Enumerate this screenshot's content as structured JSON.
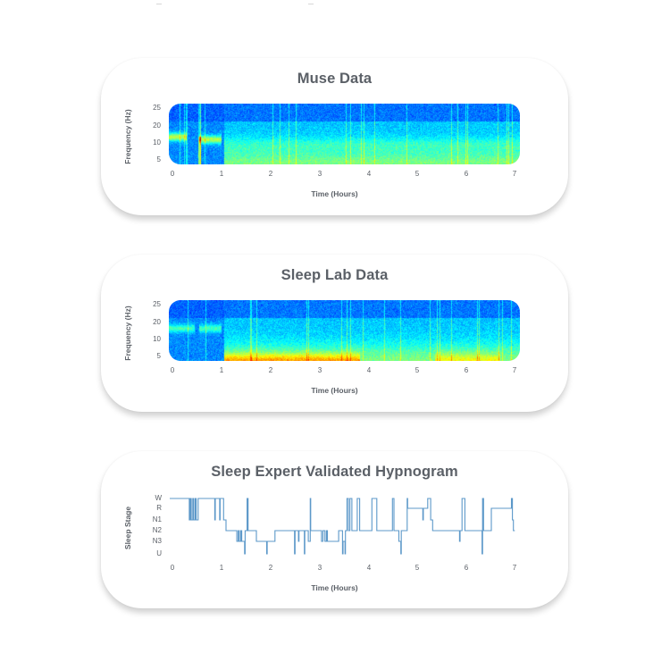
{
  "page": {
    "cards": [
      {
        "id": "muse",
        "title": "Muse Data"
      },
      {
        "id": "lab",
        "title": "Sleep Lab Data"
      },
      {
        "id": "hypnogram",
        "title": "Sleep Expert Validated Hypnogram"
      }
    ]
  },
  "colors": {
    "title_text": "#5b6067",
    "hypnogram_line": "#3f86c0",
    "spectrogram_low": "#0a2fd0",
    "spectrogram_mid": "#2fc8f0",
    "spectrogram_high": "#e8f040"
  },
  "chart_data": [
    {
      "type": "heatmap",
      "title": "Muse Data",
      "xlabel": "Time (Hours)",
      "ylabel": "Frequency (Hz)",
      "x_ticks": [
        "0",
        "1",
        "2",
        "3",
        "4",
        "5",
        "6",
        "7"
      ],
      "y_ticks": [
        "25",
        "20",
        "10",
        "5"
      ],
      "xlim": [
        0,
        7
      ],
      "ylim": [
        3,
        27
      ],
      "colormap": "jet",
      "description": "EEG spectrogram; alpha band (~12-15 Hz) prominent during 0-1 h wake; broadband low-frequency power 1.2-7 h",
      "features": [
        {
          "time_range": [
            0,
            0.35
          ],
          "freq_hz": 14,
          "intensity": "high"
        },
        {
          "time_range": [
            0.6,
            1.05
          ],
          "freq_hz": 13,
          "intensity": "high"
        },
        {
          "time_range": [
            1.1,
            7
          ],
          "freq_hz": 5,
          "intensity": "medium"
        },
        {
          "time_range": [
            1.1,
            7
          ],
          "freq_hz": 11,
          "intensity": "medium"
        }
      ]
    },
    {
      "type": "heatmap",
      "title": "Sleep Lab Data",
      "xlabel": "Time (Hours)",
      "ylabel": "Frequency (Hz)",
      "x_ticks": [
        "0",
        "1",
        "2",
        "3",
        "4",
        "5",
        "6",
        "7"
      ],
      "y_ticks": [
        "25",
        "20",
        "10",
        "5"
      ],
      "xlim": [
        0,
        7
      ],
      "ylim": [
        3,
        27
      ],
      "colormap": "jet",
      "description": "Reference PSG spectrogram; alpha band ~16 Hz during 0-1 h; strong low-frequency (delta) power around 1.2-3.7 h",
      "features": [
        {
          "time_range": [
            0,
            0.5
          ],
          "freq_hz": 16,
          "intensity": "medium"
        },
        {
          "time_range": [
            0.6,
            1.05
          ],
          "freq_hz": 16,
          "intensity": "medium"
        },
        {
          "time_range": [
            1.1,
            3.8
          ],
          "freq_hz": 4,
          "intensity": "high"
        },
        {
          "time_range": [
            5.3,
            6.6
          ],
          "freq_hz": 4,
          "intensity": "medium"
        }
      ]
    },
    {
      "type": "line",
      "title": "Sleep Expert Validated Hypnogram",
      "xlabel": "Time (Hours)",
      "ylabel": "Sleep Stage",
      "x_ticks": [
        "0",
        "1",
        "2",
        "3",
        "4",
        "5",
        "6",
        "7"
      ],
      "y_ticks": [
        "W",
        "R",
        "N1",
        "N2",
        "N3",
        "U"
      ],
      "xlim": [
        0,
        7.05
      ],
      "step": true,
      "series": [
        {
          "name": "Sleep stage",
          "points": [
            [
              0.0,
              "W"
            ],
            [
              0.4,
              "N1"
            ],
            [
              0.42,
              "W"
            ],
            [
              0.44,
              "N1"
            ],
            [
              0.47,
              "W"
            ],
            [
              0.49,
              "N1"
            ],
            [
              0.52,
              "W"
            ],
            [
              0.54,
              "N1"
            ],
            [
              0.58,
              "W"
            ],
            [
              0.92,
              "N1"
            ],
            [
              0.93,
              "W"
            ],
            [
              1.02,
              "N1"
            ],
            [
              1.03,
              "W"
            ],
            [
              1.1,
              "N1"
            ],
            [
              1.15,
              "N2"
            ],
            [
              1.37,
              "N3"
            ],
            [
              1.4,
              "N2"
            ],
            [
              1.42,
              "N3"
            ],
            [
              1.45,
              "N2"
            ],
            [
              1.47,
              "N3"
            ],
            [
              1.5,
              "N3"
            ],
            [
              1.53,
              "U"
            ],
            [
              1.54,
              "N2"
            ],
            [
              1.58,
              "W"
            ],
            [
              1.6,
              "N2"
            ],
            [
              1.77,
              "N3"
            ],
            [
              1.98,
              "U"
            ],
            [
              1.99,
              "N3"
            ],
            [
              2.15,
              "N2"
            ],
            [
              2.55,
              "U"
            ],
            [
              2.56,
              "N2"
            ],
            [
              2.63,
              "N3"
            ],
            [
              2.64,
              "N2"
            ],
            [
              2.75,
              "U"
            ],
            [
              2.76,
              "N2"
            ],
            [
              2.83,
              "N3"
            ],
            [
              2.87,
              "W"
            ],
            [
              2.88,
              "N2"
            ],
            [
              3.1,
              "N3"
            ],
            [
              3.13,
              "N2"
            ],
            [
              3.17,
              "N3"
            ],
            [
              3.2,
              "N2"
            ],
            [
              3.22,
              "N3"
            ],
            [
              3.45,
              "N2"
            ],
            [
              3.53,
              "U"
            ],
            [
              3.54,
              "N3"
            ],
            [
              3.58,
              "U"
            ],
            [
              3.59,
              "N2"
            ],
            [
              3.62,
              "W"
            ],
            [
              3.65,
              "N2"
            ],
            [
              3.68,
              "W"
            ],
            [
              3.72,
              "N2"
            ],
            [
              3.83,
              "W"
            ],
            [
              3.88,
              "N2"
            ],
            [
              4.13,
              "W"
            ],
            [
              4.23,
              "N2"
            ],
            [
              4.55,
              "W"
            ],
            [
              4.58,
              "N2"
            ],
            [
              4.68,
              "N3"
            ],
            [
              4.72,
              "U"
            ],
            [
              4.73,
              "N2"
            ],
            [
              4.85,
              "W"
            ],
            [
              4.86,
              "R"
            ],
            [
              5.17,
              "N1"
            ],
            [
              5.18,
              "R"
            ],
            [
              5.27,
              "W"
            ],
            [
              5.33,
              "N1"
            ],
            [
              5.37,
              "N2"
            ],
            [
              5.92,
              "N3"
            ],
            [
              5.93,
              "N2"
            ],
            [
              5.97,
              "W"
            ],
            [
              6.03,
              "N2"
            ],
            [
              6.38,
              "U"
            ],
            [
              6.39,
              "W"
            ],
            [
              6.41,
              "N2"
            ],
            [
              6.57,
              "R"
            ],
            [
              6.98,
              "W"
            ],
            [
              7.0,
              "N1"
            ],
            [
              7.02,
              "N2"
            ],
            [
              7.05,
              "N2"
            ]
          ]
        }
      ]
    }
  ]
}
